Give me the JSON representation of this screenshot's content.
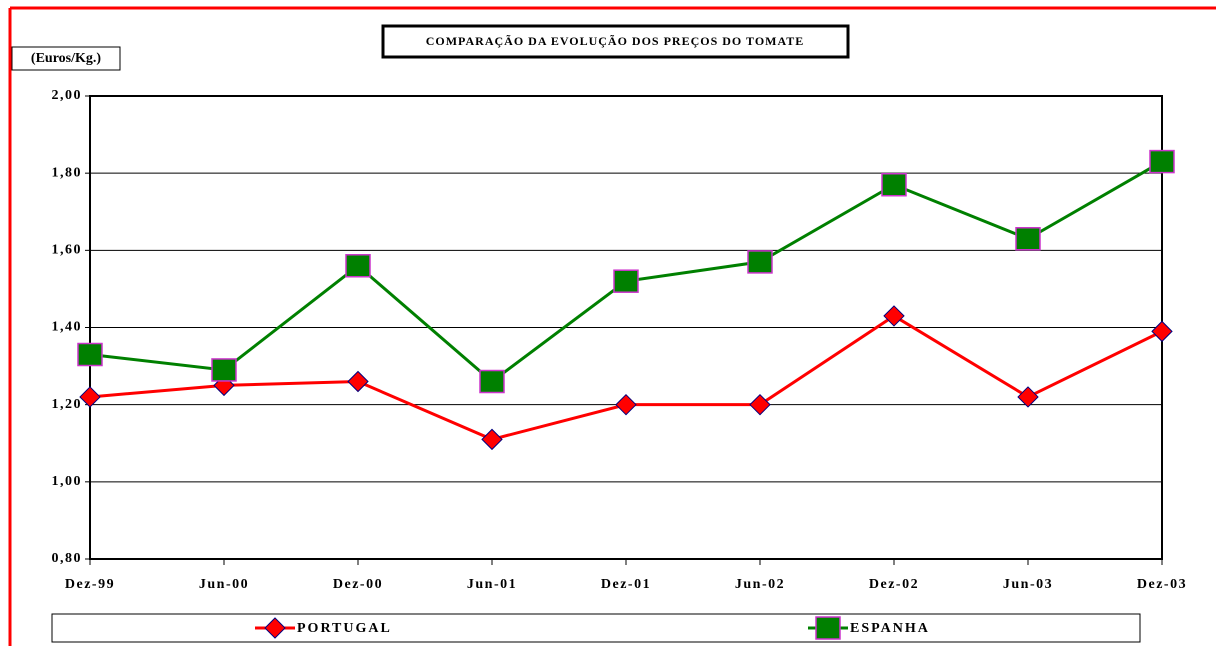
{
  "chart_data": {
    "type": "line",
    "title": "COMPARAÇÃO DA EVOLUÇÃO DOS PREÇOS DO TOMATE",
    "y_axis_label": "(Euros/Kg.)",
    "categories": [
      "Dez-99",
      "Jun-00",
      "Dez-00",
      "Jun-01",
      "Dez-01",
      "Jun-02",
      "Dez-02",
      "Jun-03",
      "Dez-03"
    ],
    "series": [
      {
        "name": "PORTUGAL",
        "color": "#ff0000",
        "values": [
          1.22,
          1.25,
          1.26,
          1.11,
          1.2,
          1.2,
          1.43,
          1.22,
          1.39
        ]
      },
      {
        "name": "ESPANHA",
        "color": "#008000",
        "values": [
          1.33,
          1.29,
          1.56,
          1.26,
          1.52,
          1.57,
          1.77,
          1.63,
          1.83
        ]
      }
    ],
    "ylim": [
      0.8,
      2.0
    ],
    "yticks": [
      {
        "value": 0.8,
        "label": "0,80"
      },
      {
        "value": 1.0,
        "label": "1,00"
      },
      {
        "value": 1.2,
        "label": "1,20"
      },
      {
        "value": 1.4,
        "label": "1,40"
      },
      {
        "value": 1.6,
        "label": "1,60"
      },
      {
        "value": 1.8,
        "label": "1,80"
      },
      {
        "value": 2.0,
        "label": "2,00"
      }
    ],
    "grid": true,
    "legend": "bottom"
  }
}
